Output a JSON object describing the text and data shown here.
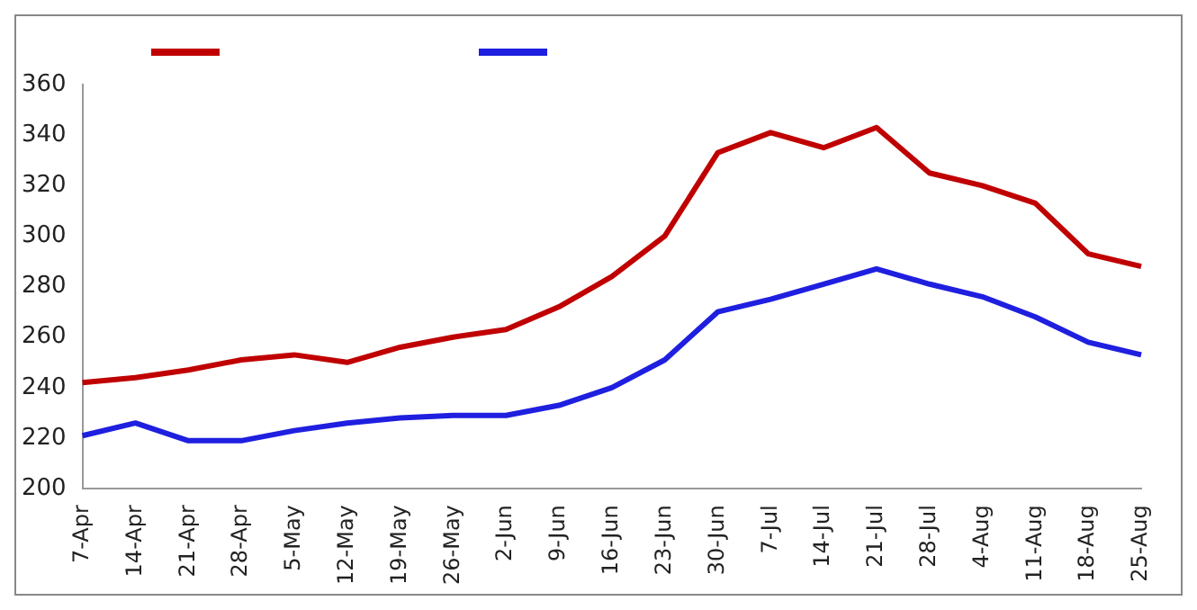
{
  "chart_data": {
    "type": "line",
    "categories": [
      "7-Apr",
      "14-Apr",
      "21-Apr",
      "28-Apr",
      "5-May",
      "12-May",
      "19-May",
      "26-May",
      "2-Jun",
      "9-Jun",
      "16-Jun",
      "23-Jun",
      "30-Jun",
      "7-Jul",
      "14-Jul",
      "21-Jul",
      "28-Jul",
      "4-Aug",
      "11-Aug",
      "18-Aug",
      "25-Aug"
    ],
    "series": [
      {
        "color": "#c00000",
        "values": [
          242,
          244,
          247,
          251,
          253,
          250,
          256,
          260,
          263,
          272,
          284,
          300,
          333,
          341,
          335,
          343,
          325,
          320,
          313,
          293,
          288
        ]
      },
      {
        "color": "#1f1fe0",
        "values": [
          221,
          226,
          219,
          219,
          223,
          226,
          228,
          229,
          229,
          233,
          240,
          251,
          270,
          275,
          281,
          287,
          281,
          276,
          268,
          258,
          253
        ]
      }
    ],
    "ylim": [
      200,
      360
    ],
    "yticks": [
      200,
      220,
      240,
      260,
      280,
      300,
      320,
      340,
      360
    ],
    "grid": false,
    "marker": "none",
    "line_style": "solid"
  }
}
